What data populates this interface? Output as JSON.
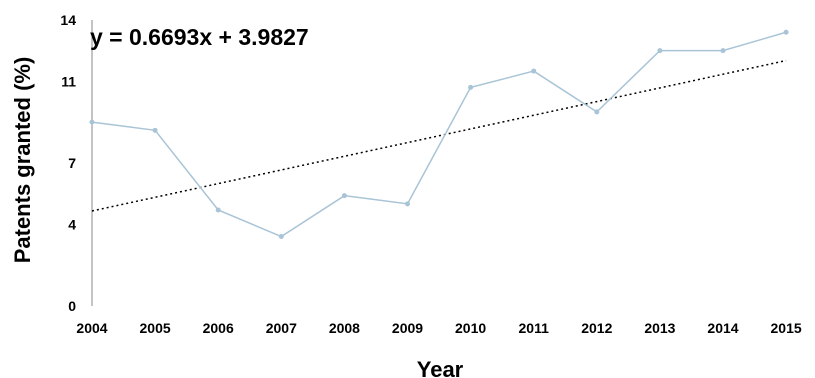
{
  "chart_data": {
    "type": "line",
    "title": "",
    "xlabel": "Year",
    "ylabel": "Patents granted (%)",
    "x": [
      2004,
      2005,
      2006,
      2007,
      2008,
      2009,
      2010,
      2011,
      2012,
      2013,
      2014,
      2015
    ],
    "x_tick_labels": [
      "2004",
      "2005",
      "2006",
      "2007",
      "2008",
      "2009",
      "2010",
      "2011",
      "2012",
      "2013",
      "2014",
      "2015"
    ],
    "y_ticks": [
      0,
      4,
      7,
      11,
      14
    ],
    "y_tick_labels": [
      "0",
      "4",
      "7",
      "11",
      "14"
    ],
    "ylim": [
      0,
      14
    ],
    "grid": false,
    "series": [
      {
        "values": [
          9.0,
          8.6,
          4.7,
          3.4,
          5.4,
          5.0,
          10.7,
          11.5,
          9.5,
          12.5,
          12.5,
          13.4
        ],
        "color": "#a9c4d6"
      }
    ],
    "trendline": {
      "equation": "y = 0.6693x + 3.9827",
      "slope": 0.6693,
      "intercept": 3.9827,
      "style": "dotted",
      "color": "#000000"
    }
  }
}
